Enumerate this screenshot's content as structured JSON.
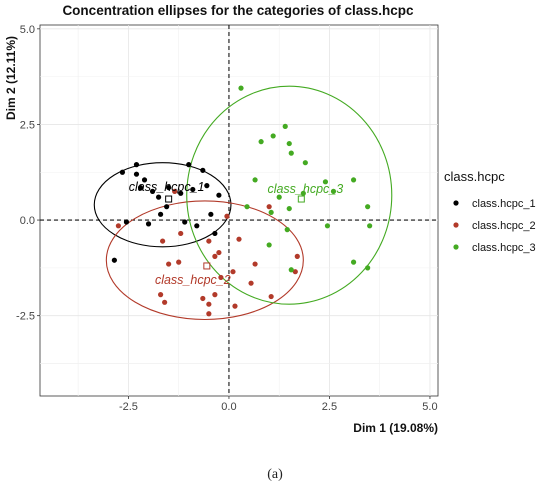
{
  "chart_data": {
    "type": "scatter",
    "title": "Concentration ellipses for the categories of class.hcpc",
    "xlabel": "Dim 1 (19.08%)",
    "ylabel": "Dim 2 (12.11%)",
    "xlim": [
      -4.7,
      5.2
    ],
    "ylim": [
      -4.6,
      5.1
    ],
    "x_ticks": [
      -2.5,
      0.0,
      2.5,
      5.0
    ],
    "y_ticks": [
      -2.5,
      0.0,
      2.5,
      5.0
    ],
    "x_tick_labels": [
      "-2.5",
      "0.0",
      "2.5",
      "5.0"
    ],
    "y_tick_labels": [
      "-2.5",
      "0.0",
      "2.5",
      "5.0"
    ],
    "grid": true,
    "reference_lines": {
      "x": 0,
      "y": 0,
      "style": "dashed"
    },
    "legend": {
      "title": "class.hcpc",
      "position": "right"
    },
    "series": [
      {
        "name": "class.hcpc_1",
        "color": "#000000",
        "points": [
          [
            -2.85,
            -1.05
          ],
          [
            -2.55,
            -0.05
          ],
          [
            -2.3,
            1.45
          ],
          [
            -2.3,
            1.2
          ],
          [
            -2.1,
            1.05
          ],
          [
            -2.2,
            0.85
          ],
          [
            -1.9,
            0.75
          ],
          [
            -1.75,
            0.6
          ],
          [
            -1.5,
            0.85
          ],
          [
            -1.2,
            0.7
          ],
          [
            -1.0,
            1.45
          ],
          [
            -1.1,
            -0.05
          ],
          [
            -0.9,
            0.8
          ],
          [
            -0.65,
            1.3
          ],
          [
            -0.45,
            0.15
          ],
          [
            -0.8,
            -0.15
          ],
          [
            -0.35,
            -0.35
          ],
          [
            -0.25,
            0.65
          ],
          [
            -1.7,
            0.15
          ],
          [
            -1.55,
            0.35
          ],
          [
            -2.0,
            -0.1
          ],
          [
            -2.65,
            1.25
          ],
          [
            -0.55,
            0.9
          ]
        ],
        "centroid": [
          -1.5,
          0.55
        ],
        "centroid_label": "class_hcpc_1",
        "ellipse": {
          "cx": -1.65,
          "cy": 0.4,
          "rx": 1.7,
          "ry": 1.1
        }
      },
      {
        "name": "class.hcpc_2",
        "color": "#b23a2a",
        "points": [
          [
            -2.75,
            -0.15
          ],
          [
            -1.7,
            -1.95
          ],
          [
            -1.6,
            -2.15
          ],
          [
            -1.65,
            -0.55
          ],
          [
            -1.5,
            -1.15
          ],
          [
            -1.25,
            -1.1
          ],
          [
            -1.35,
            0.75
          ],
          [
            -0.65,
            -2.05
          ],
          [
            -0.5,
            -2.2
          ],
          [
            -0.5,
            -2.45
          ],
          [
            -0.35,
            -1.95
          ],
          [
            -0.35,
            -0.95
          ],
          [
            -0.5,
            -0.55
          ],
          [
            -0.2,
            -1.5
          ],
          [
            -0.25,
            -0.85
          ],
          [
            -0.05,
            0.1
          ],
          [
            0.15,
            -2.25
          ],
          [
            0.1,
            -1.35
          ],
          [
            0.25,
            -0.5
          ],
          [
            0.65,
            -1.15
          ],
          [
            0.55,
            -1.65
          ],
          [
            1.05,
            -2.0
          ],
          [
            1.0,
            0.35
          ],
          [
            1.65,
            -1.35
          ],
          [
            1.7,
            -0.95
          ],
          [
            -1.2,
            -0.35
          ]
        ],
        "centroid": [
          -0.55,
          -1.2
        ],
        "centroid_label": "class_hcpc_2",
        "ellipse": {
          "cx": -0.6,
          "cy": -1.05,
          "rx": 2.45,
          "ry": 1.55
        }
      },
      {
        "name": "class.hcpc_3",
        "color": "#44aa22",
        "points": [
          [
            0.3,
            3.45
          ],
          [
            0.8,
            2.05
          ],
          [
            1.1,
            2.2
          ],
          [
            1.4,
            2.45
          ],
          [
            1.5,
            2.0
          ],
          [
            1.55,
            1.75
          ],
          [
            0.65,
            1.05
          ],
          [
            1.25,
            0.6
          ],
          [
            1.05,
            0.2
          ],
          [
            1.5,
            0.3
          ],
          [
            1.85,
            0.7
          ],
          [
            1.9,
            1.5
          ],
          [
            2.4,
            1.0
          ],
          [
            2.45,
            -0.15
          ],
          [
            2.6,
            0.75
          ],
          [
            3.1,
            1.05
          ],
          [
            3.45,
            0.35
          ],
          [
            3.5,
            -0.15
          ],
          [
            3.1,
            -1.1
          ],
          [
            3.45,
            -1.25
          ],
          [
            1.45,
            -0.25
          ],
          [
            1.55,
            -1.3
          ],
          [
            1.0,
            -0.65
          ],
          [
            0.45,
            0.35
          ]
        ],
        "centroid": [
          1.8,
          0.55
        ],
        "centroid_label": "class_hcpc_3",
        "ellipse": {
          "cx": 1.5,
          "cy": 0.65,
          "rx": 2.55,
          "ry": 2.85
        }
      }
    ]
  },
  "caption": "(a)"
}
